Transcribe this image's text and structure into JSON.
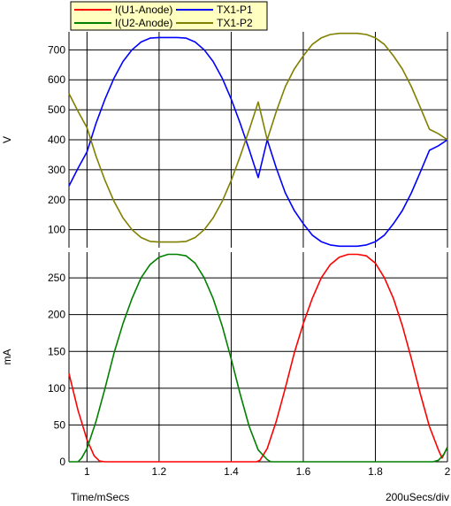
{
  "chart_data": {
    "type": "line",
    "x_axis": {
      "label": "Time/mSecs",
      "range": [
        0.95,
        2.0
      ],
      "ticks": [
        1,
        1.2,
        1.4,
        1.6,
        1.8,
        2
      ],
      "tick_labels": [
        "1",
        "1.2",
        "1.4",
        "1.6",
        "1.8",
        "2"
      ],
      "division_note": "200uSecs/div"
    },
    "grid": true,
    "legend": {
      "position": "top-left",
      "background": "#ffffc0",
      "entries": [
        {
          "name": "I(U1-Anode)",
          "color": "#ff0000"
        },
        {
          "name": "TX1-P1",
          "color": "#0000ff"
        },
        {
          "name": "I(U2-Anode)",
          "color": "#008000"
        },
        {
          "name": "TX1-P2",
          "color": "#808000"
        }
      ]
    },
    "panels": [
      {
        "id": "voltage",
        "ylabel": "V",
        "ylim": [
          40,
          760
        ],
        "yticks": [
          100,
          200,
          300,
          400,
          500,
          600,
          700
        ],
        "series": [
          {
            "name": "TX1-P1",
            "color": "#0000ff",
            "x": [
              0.95,
              0.975,
              1.0,
              1.025,
              1.05,
              1.075,
              1.1,
              1.125,
              1.15,
              1.175,
              1.2,
              1.225,
              1.25,
              1.275,
              1.3,
              1.325,
              1.35,
              1.375,
              1.4,
              1.425,
              1.45,
              1.475,
              1.5,
              1.525,
              1.55,
              1.575,
              1.6,
              1.625,
              1.65,
              1.675,
              1.7,
              1.725,
              1.75,
              1.775,
              1.8,
              1.825,
              1.85,
              1.875,
              1.9,
              1.925,
              1.95,
              1.975,
              2.0
            ],
            "y": [
              246,
              305,
              360,
              455,
              536,
              606,
              661,
              700,
              726,
              739,
              741,
              741,
              741,
              739,
              726,
              700,
              661,
              606,
              536,
              455,
              367,
              274,
              400,
              306,
              223,
              164,
              120,
              82,
              60,
              49,
              45,
              45,
              45,
              49,
              60,
              82,
              120,
              164,
              223,
              293,
              365,
              380,
              400
            ]
          },
          {
            "name": "TX1-P2",
            "color": "#808000",
            "x": [
              0.95,
              0.975,
              1.0,
              1.025,
              1.05,
              1.075,
              1.1,
              1.125,
              1.15,
              1.175,
              1.2,
              1.225,
              1.25,
              1.275,
              1.3,
              1.325,
              1.35,
              1.375,
              1.4,
              1.425,
              1.45,
              1.475,
              1.5,
              1.525,
              1.55,
              1.575,
              1.6,
              1.625,
              1.65,
              1.675,
              1.7,
              1.725,
              1.75,
              1.775,
              1.8,
              1.825,
              1.85,
              1.875,
              1.9,
              1.925,
              1.95,
              1.975,
              2.0
            ],
            "y": [
              554,
              495,
              440,
              345,
              264,
              194,
              139,
              100,
              74,
              61,
              59,
              59,
              59,
              61,
              74,
              100,
              139,
              194,
              264,
              345,
              433,
              526,
              400,
              494,
              577,
              636,
              680,
              718,
              740,
              751,
              755,
              755,
              755,
              751,
              740,
              718,
              680,
              636,
              577,
              507,
              435,
              420,
              400
            ]
          }
        ]
      },
      {
        "id": "current",
        "ylabel": "mA",
        "ylim": [
          0,
          285
        ],
        "yticks": [
          0,
          50,
          100,
          150,
          200,
          250
        ],
        "series": [
          {
            "name": "I(U1-Anode)",
            "color": "#ff0000",
            "x": [
              0.95,
              0.975,
              1.0,
              1.02,
              1.035,
              1.05,
              1.1,
              1.2,
              1.3,
              1.4,
              1.47,
              1.48,
              1.5,
              1.525,
              1.55,
              1.575,
              1.6,
              1.625,
              1.65,
              1.675,
              1.7,
              1.725,
              1.75,
              1.775,
              1.8,
              1.825,
              1.85,
              1.875,
              1.9,
              1.925,
              1.95,
              1.975,
              1.985,
              2.0
            ],
            "y": [
              120,
              70,
              30,
              8,
              1,
              0,
              0,
              0,
              0,
              0,
              0,
              2,
              18,
              55,
              100,
              148,
              188,
              222,
              250,
              268,
              278,
              282,
              282,
              280,
              270,
              250,
              222,
              185,
              140,
              92,
              48,
              16,
              5,
              20
            ]
          },
          {
            "name": "I(U2-Anode)",
            "color": "#008000",
            "x": [
              0.95,
              0.975,
              0.985,
              1.0,
              1.025,
              1.05,
              1.075,
              1.1,
              1.125,
              1.15,
              1.175,
              1.2,
              1.225,
              1.25,
              1.275,
              1.3,
              1.325,
              1.35,
              1.375,
              1.4,
              1.425,
              1.45,
              1.475,
              1.5,
              1.51,
              1.525,
              1.55,
              1.6,
              1.7,
              1.8,
              1.9,
              1.96,
              1.975,
              1.99,
              2.0
            ],
            "y": [
              0,
              0,
              5,
              18,
              55,
              100,
              148,
              188,
              222,
              250,
              268,
              278,
              282,
              282,
              280,
              270,
              250,
              222,
              185,
              140,
              92,
              48,
              16,
              3,
              0,
              0,
              0,
              0,
              0,
              0,
              0,
              0,
              2,
              10,
              20
            ]
          }
        ]
      }
    ]
  }
}
